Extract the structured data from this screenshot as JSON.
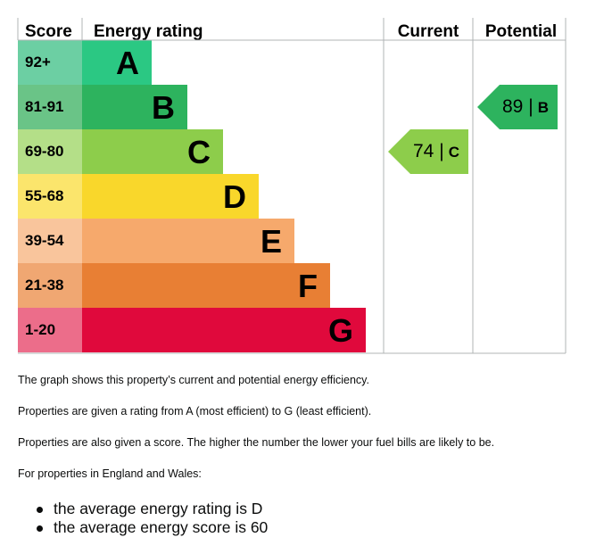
{
  "chart_data": {
    "type": "table",
    "headers": {
      "score": "Score",
      "rating": "Energy rating",
      "current": "Current",
      "potential": "Potential"
    },
    "bands": [
      {
        "score": "92+",
        "letter": "A",
        "color": "#2bc883",
        "score_bg": "#6ccfa3"
      },
      {
        "score": "81-91",
        "letter": "B",
        "color": "#2db35e",
        "score_bg": "#6ac487"
      },
      {
        "score": "69-80",
        "letter": "C",
        "color": "#8dcd4b",
        "score_bg": "#b4df88"
      },
      {
        "score": "55-68",
        "letter": "D",
        "color": "#f9d72b",
        "score_bg": "#fbe56c"
      },
      {
        "score": "39-54",
        "letter": "E",
        "color": "#f6a96c",
        "score_bg": "#f9c59c"
      },
      {
        "score": "21-38",
        "letter": "F",
        "color": "#e87f34",
        "score_bg": "#f0a772"
      },
      {
        "score": "1-20",
        "letter": "G",
        "color": "#e0093c",
        "score_bg": "#ec6d8a"
      }
    ],
    "current": {
      "score": 74,
      "letter": "C",
      "text": "74 |",
      "color": "#8dcd4b"
    },
    "potential": {
      "score": 89,
      "letter": "B",
      "text": "89 |",
      "color": "#2db35e"
    }
  },
  "description": {
    "line1": "The graph shows this property’s current and potential energy efficiency.",
    "line2": "Properties are given a rating from A (most efficient) to G (least efficient).",
    "line3": "Properties are also given a score. The higher the number the lower your fuel bills are likely to be.",
    "line4": "For properties in England and Wales:",
    "bullets": [
      "the average energy rating is D",
      "the average energy score is 60"
    ]
  }
}
